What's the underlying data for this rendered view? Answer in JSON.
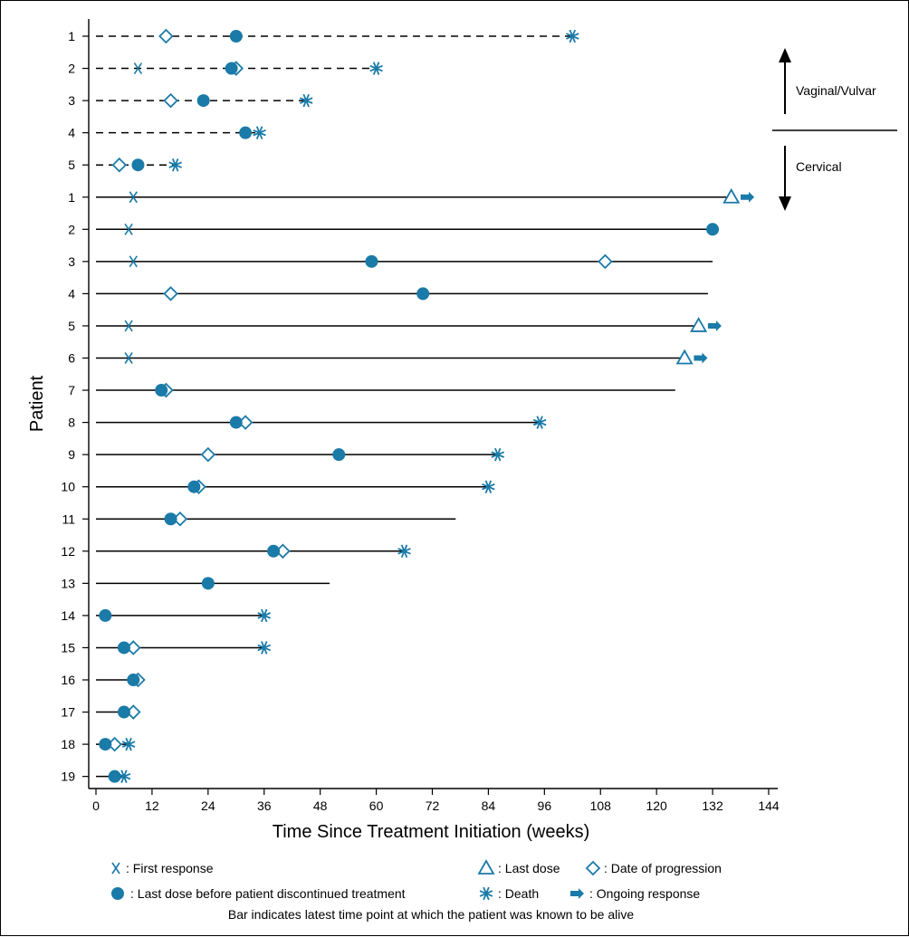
{
  "chart_data": {
    "type": "swimmer",
    "xlabel": "Time Since Treatment Initiation (weeks)",
    "ylabel": "Patient",
    "xlim": [
      0,
      144
    ],
    "xticks": [
      0,
      12,
      24,
      36,
      48,
      60,
      72,
      84,
      96,
      108,
      120,
      132,
      144
    ],
    "colors": {
      "marker": "#1a7aa8",
      "line": "#000000"
    },
    "groups": [
      {
        "label": "Vaginal/Vulvar",
        "arrow": "up"
      },
      {
        "label": "Cervical",
        "arrow": "down"
      }
    ],
    "patients": [
      {
        "group": "Vaginal/Vulvar",
        "label": "1",
        "end": 102,
        "line_style": "dashed",
        "events": {
          "progression": 15,
          "discontinued": 30,
          "death": 102
        }
      },
      {
        "group": "Vaginal/Vulvar",
        "label": "2",
        "end": 60,
        "line_style": "dashed",
        "events": {
          "first_response": 9,
          "discontinued": 29,
          "progression": 30,
          "death": 60
        }
      },
      {
        "group": "Vaginal/Vulvar",
        "label": "3",
        "end": 45,
        "line_style": "dashed",
        "events": {
          "progression": 16,
          "discontinued": 23,
          "death": 45
        }
      },
      {
        "group": "Vaginal/Vulvar",
        "label": "4",
        "end": 35,
        "line_style": "dashed",
        "events": {
          "discontinued": 32,
          "death": 35
        }
      },
      {
        "group": "Vaginal/Vulvar",
        "label": "5",
        "end": 17,
        "line_style": "dashed",
        "events": {
          "progression": 5,
          "discontinued": 9,
          "death": 17
        }
      },
      {
        "group": "Cervical",
        "label": "1",
        "end": 136,
        "line_style": "solid",
        "events": {
          "first_response": 8,
          "last_dose": 136,
          "ongoing": 138
        }
      },
      {
        "group": "Cervical",
        "label": "2",
        "end": 132,
        "line_style": "solid",
        "events": {
          "first_response": 7,
          "discontinued": 132
        }
      },
      {
        "group": "Cervical",
        "label": "3",
        "end": 132,
        "line_style": "solid",
        "events": {
          "first_response": 8,
          "discontinued": 59,
          "progression": 109
        }
      },
      {
        "group": "Cervical",
        "label": "4",
        "end": 131,
        "line_style": "solid",
        "events": {
          "progression": 16,
          "discontinued": 70
        }
      },
      {
        "group": "Cervical",
        "label": "5",
        "end": 129,
        "line_style": "solid",
        "events": {
          "first_response": 7,
          "last_dose": 129,
          "ongoing": 131
        }
      },
      {
        "group": "Cervical",
        "label": "6",
        "end": 126,
        "line_style": "solid",
        "events": {
          "first_response": 7,
          "last_dose": 126,
          "ongoing": 128
        }
      },
      {
        "group": "Cervical",
        "label": "7",
        "end": 124,
        "line_style": "solid",
        "events": {
          "discontinued": 14,
          "progression": 15
        }
      },
      {
        "group": "Cervical",
        "label": "8",
        "end": 95,
        "line_style": "solid",
        "events": {
          "discontinued": 30,
          "progression": 32,
          "death": 95
        }
      },
      {
        "group": "Cervical",
        "label": "9",
        "end": 86,
        "line_style": "solid",
        "events": {
          "progression": 24,
          "discontinued": 52,
          "death": 86
        }
      },
      {
        "group": "Cervical",
        "label": "10",
        "end": 84,
        "line_style": "solid",
        "events": {
          "discontinued": 21,
          "progression": 22,
          "death": 84
        }
      },
      {
        "group": "Cervical",
        "label": "11",
        "end": 77,
        "line_style": "solid",
        "events": {
          "discontinued": 16,
          "progression": 18
        }
      },
      {
        "group": "Cervical",
        "label": "12",
        "end": 66,
        "line_style": "solid",
        "events": {
          "discontinued": 38,
          "progression": 40,
          "death": 66
        }
      },
      {
        "group": "Cervical",
        "label": "13",
        "end": 50,
        "line_style": "solid",
        "events": {
          "discontinued": 24
        }
      },
      {
        "group": "Cervical",
        "label": "14",
        "end": 36,
        "line_style": "solid",
        "events": {
          "discontinued": 2,
          "death": 36
        }
      },
      {
        "group": "Cervical",
        "label": "15",
        "end": 36,
        "line_style": "solid",
        "events": {
          "discontinued": 6,
          "progression": 8,
          "death": 36
        }
      },
      {
        "group": "Cervical",
        "label": "16",
        "end": 9,
        "line_style": "solid",
        "events": {
          "progression": 9,
          "discontinued": 8
        }
      },
      {
        "group": "Cervical",
        "label": "17",
        "end": 8,
        "line_style": "solid",
        "events": {
          "discontinued": 6,
          "progression": 8
        }
      },
      {
        "group": "Cervical",
        "label": "18",
        "end": 7,
        "line_style": "solid",
        "events": {
          "discontinued": 2,
          "progression": 4,
          "death": 7
        }
      },
      {
        "group": "Cervical",
        "label": "19",
        "end": 6,
        "line_style": "solid",
        "events": {
          "discontinued": 4,
          "death": 6
        }
      }
    ],
    "legend": {
      "first_response": ": First response",
      "last_dose": ": Last dose",
      "progression": ": Date of progression",
      "discontinued": ": Last dose before patient discontinued treatment",
      "death": ": Death",
      "ongoing": ": Ongoing response",
      "note": "Bar indicates latest time point at which the patient was known to be alive"
    }
  }
}
